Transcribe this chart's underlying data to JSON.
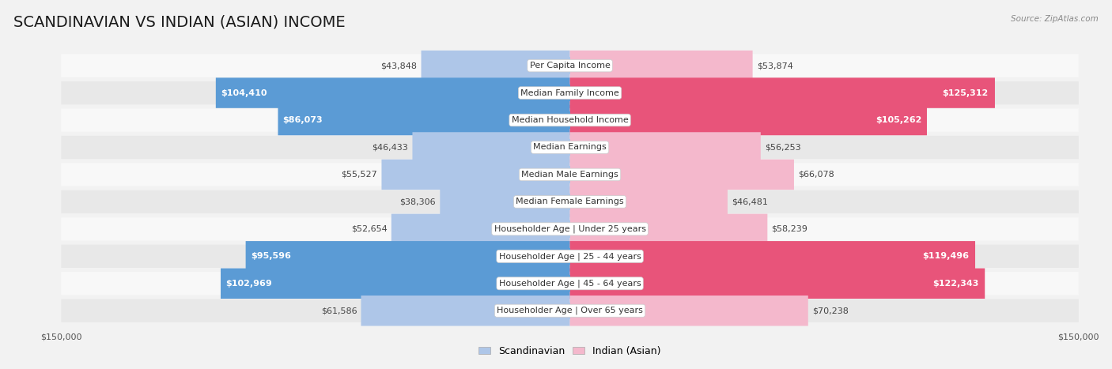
{
  "title": "SCANDINAVIAN VS INDIAN (ASIAN) INCOME",
  "source": "Source: ZipAtlas.com",
  "categories": [
    "Per Capita Income",
    "Median Family Income",
    "Median Household Income",
    "Median Earnings",
    "Median Male Earnings",
    "Median Female Earnings",
    "Householder Age | Under 25 years",
    "Householder Age | 25 - 44 years",
    "Householder Age | 45 - 64 years",
    "Householder Age | Over 65 years"
  ],
  "scandinavian": [
    43848,
    104410,
    86073,
    46433,
    55527,
    38306,
    52654,
    95596,
    102969,
    61586
  ],
  "indian": [
    53874,
    125312,
    105262,
    56253,
    66078,
    46481,
    58239,
    119496,
    122343,
    70238
  ],
  "max_value": 150000,
  "scand_color_light": "#aec6e8",
  "scand_color_dark": "#5b9bd5",
  "indian_color_light": "#f4b8cc",
  "indian_color_dark": "#e8547a",
  "bg_color": "#f2f2f2",
  "row_bg_light": "#f8f8f8",
  "row_bg_dark": "#e8e8e8",
  "title_fontsize": 14,
  "label_fontsize": 8,
  "value_fontsize": 8,
  "axis_label_fontsize": 8,
  "legend_fontsize": 9,
  "highlight_threshold_scand": 80000,
  "highlight_threshold_indian": 80000
}
